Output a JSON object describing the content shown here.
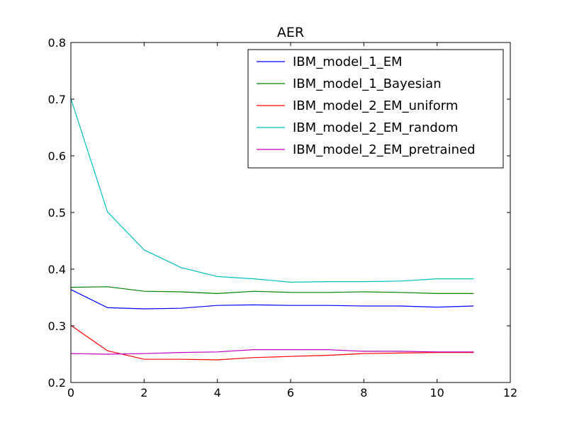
{
  "chart_data": {
    "type": "line",
    "title": "AER",
    "xlabel": "",
    "ylabel": "",
    "xlim": [
      0,
      12
    ],
    "ylim": [
      0.2,
      0.8
    ],
    "xticks": [
      0,
      2,
      4,
      6,
      8,
      10,
      12
    ],
    "xtick_labels": [
      "0",
      "2",
      "4",
      "6",
      "8",
      "10",
      "12"
    ],
    "yticks": [
      0.2,
      0.3,
      0.4,
      0.5,
      0.6,
      0.7,
      0.8
    ],
    "ytick_labels": [
      "0.2",
      "0.3",
      "0.4",
      "0.5",
      "0.6",
      "0.7",
      "0.8"
    ],
    "grid": false,
    "legend_position": "top-right",
    "x": [
      0,
      1,
      2,
      3,
      4,
      5,
      6,
      7,
      8,
      9,
      10,
      11
    ],
    "series": [
      {
        "name": "IBM_model_1_EM",
        "color": "#0000ff",
        "values": [
          0.364,
          0.332,
          0.33,
          0.331,
          0.336,
          0.337,
          0.336,
          0.336,
          0.335,
          0.335,
          0.333,
          0.335
        ]
      },
      {
        "name": "IBM_model_1_Bayesian",
        "color": "#008000",
        "values": [
          0.368,
          0.369,
          0.361,
          0.36,
          0.357,
          0.361,
          0.359,
          0.359,
          0.36,
          0.359,
          0.357,
          0.357
        ]
      },
      {
        "name": "IBM_model_2_EM_uniform",
        "color": "#ff0000",
        "values": [
          0.301,
          0.256,
          0.241,
          0.241,
          0.24,
          0.244,
          0.246,
          0.248,
          0.251,
          0.252,
          0.253,
          0.253
        ]
      },
      {
        "name": "IBM_model_2_EM_random",
        "color": "#00bfbf",
        "values": [
          0.701,
          0.501,
          0.434,
          0.403,
          0.387,
          0.383,
          0.377,
          0.378,
          0.378,
          0.379,
          0.383,
          0.383
        ]
      },
      {
        "name": "IBM_model_2_EM_pretrained",
        "color": "#bf00bf",
        "values": [
          0.251,
          0.25,
          0.251,
          0.253,
          0.254,
          0.258,
          0.258,
          0.258,
          0.255,
          0.255,
          0.254,
          0.254
        ]
      }
    ]
  }
}
